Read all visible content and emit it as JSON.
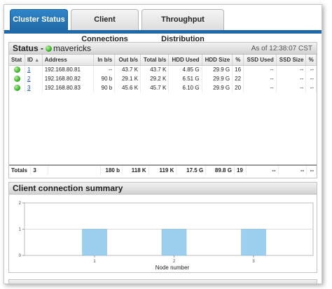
{
  "tabs": [
    {
      "label": "Cluster Status",
      "active": true
    },
    {
      "label": "Client Connections",
      "active": false
    },
    {
      "label": "Throughput Distribution",
      "active": false
    }
  ],
  "status": {
    "title": "Status -",
    "cluster_name": "mavericks",
    "timestamp": "As of 12:38:07 CST",
    "columns": [
      "Stat",
      "ID",
      "Address",
      "In b/s",
      "Out b/s",
      "Total b/s",
      "HDD Used",
      "HDD Size",
      "%",
      "SSD Used",
      "SSD Size",
      "%"
    ],
    "rows": [
      {
        "id": "1",
        "address": "192.168.80.81",
        "in": "--",
        "out": "43.7 K",
        "total": "43.7 K",
        "hdd_used": "4.85 G",
        "hdd_size": "29.9 G",
        "pct": "16",
        "ssd_used": "--",
        "ssd_size": "--",
        "ssd_pct": "--"
      },
      {
        "id": "2",
        "address": "192.168.80.82",
        "in": "90 b",
        "out": "29.1 K",
        "total": "29.2 K",
        "hdd_used": "6.51 G",
        "hdd_size": "29.9 G",
        "pct": "22",
        "ssd_used": "--",
        "ssd_size": "--",
        "ssd_pct": "--"
      },
      {
        "id": "3",
        "address": "192.168.80.83",
        "in": "90 b",
        "out": "45.6 K",
        "total": "45.7 K",
        "hdd_used": "6.10 G",
        "hdd_size": "29.9 G",
        "pct": "20",
        "ssd_used": "--",
        "ssd_size": "--",
        "ssd_pct": "--"
      }
    ],
    "totals": {
      "label": "Totals",
      "id": "3",
      "in": "180 b",
      "out": "118 K",
      "total": "119 K",
      "hdd_used": "17.5 G",
      "hdd_size": "89.8 G",
      "pct": "19",
      "ssd_used": "--",
      "ssd_size": "--",
      "ssd_pct": "--"
    }
  },
  "summary": {
    "title": "Client connection summary"
  },
  "chart_data": {
    "type": "bar",
    "categories": [
      "1",
      "2",
      "3"
    ],
    "values": [
      1,
      1,
      1
    ],
    "title": "",
    "xlabel": "Node number",
    "ylabel": "",
    "ylim": [
      0,
      2
    ],
    "yticks": [
      "0",
      "1",
      "2"
    ],
    "grid": true,
    "bar_color": "#9cd0ee"
  },
  "colors": {
    "accent": "#1f69a6",
    "status_ok": "#3fae2a",
    "link": "#1d4fb3"
  }
}
